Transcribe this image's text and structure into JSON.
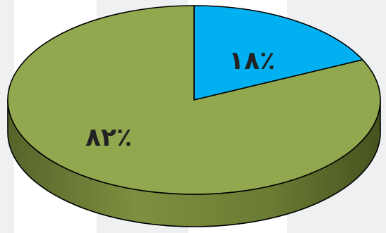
{
  "chart_data": {
    "type": "pie",
    "style": "3d",
    "categories": [
      "",
      ""
    ],
    "values": [
      18,
      82
    ],
    "labels": [
      "١٨٪",
      "٨٢٪"
    ],
    "colors": [
      "#00b0f0",
      "#92a84e"
    ],
    "side_colors": [
      "#0085b8",
      "#6b7c33"
    ],
    "title": "",
    "legend": "none",
    "start_angle_deg": 90,
    "direction": "clockwise"
  }
}
